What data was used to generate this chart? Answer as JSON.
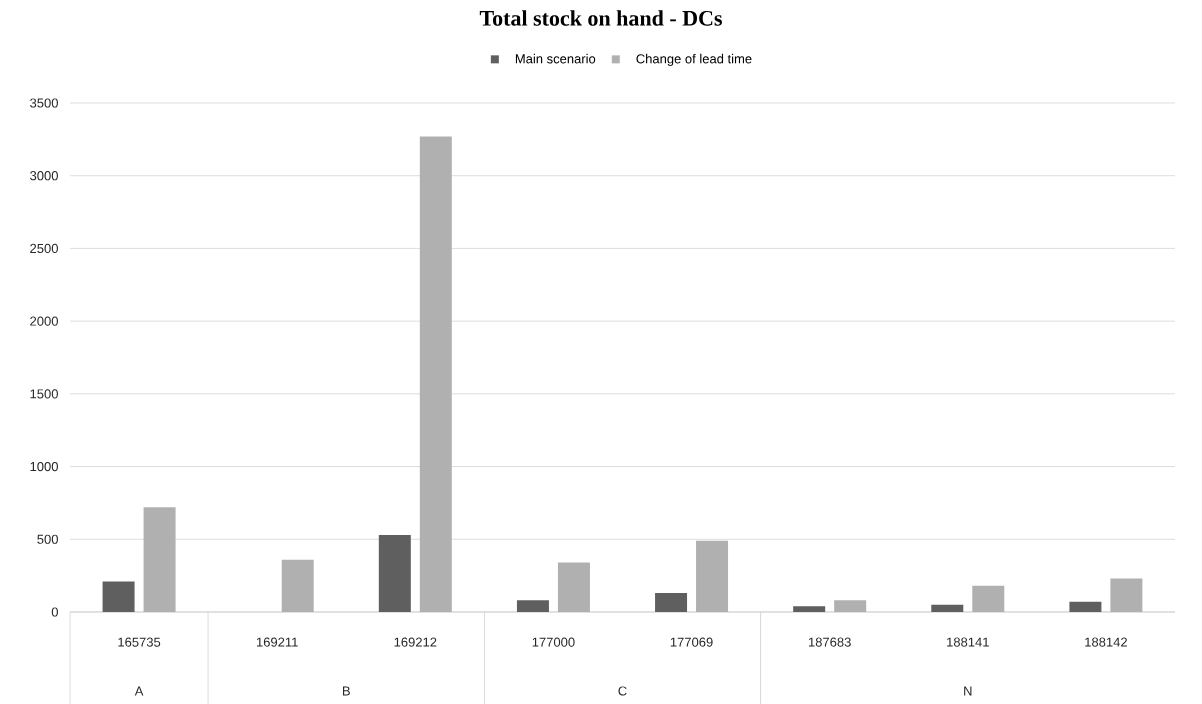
{
  "chart_data": {
    "type": "bar",
    "title": "Total stock on hand - DCs",
    "categories": [
      "165735",
      "169211",
      "169212",
      "177000",
      "177069",
      "187683",
      "188141",
      "188142"
    ],
    "series": [
      {
        "name": "Main scenario",
        "color": "#5f5f5f",
        "values": [
          210,
          0,
          530,
          80,
          130,
          40,
          50,
          70
        ]
      },
      {
        "name": "Change of lead time",
        "color": "#b0b0b0",
        "values": [
          720,
          360,
          3270,
          340,
          490,
          80,
          180,
          230
        ]
      }
    ],
    "annotations": [
      "A",
      "B",
      "C",
      "N"
    ],
    "ylim": [
      0,
      3500
    ],
    "yticks": [
      0,
      500,
      1000,
      1500,
      2000,
      2500,
      3000,
      3500
    ],
    "grid": "y",
    "legend": "top"
  }
}
